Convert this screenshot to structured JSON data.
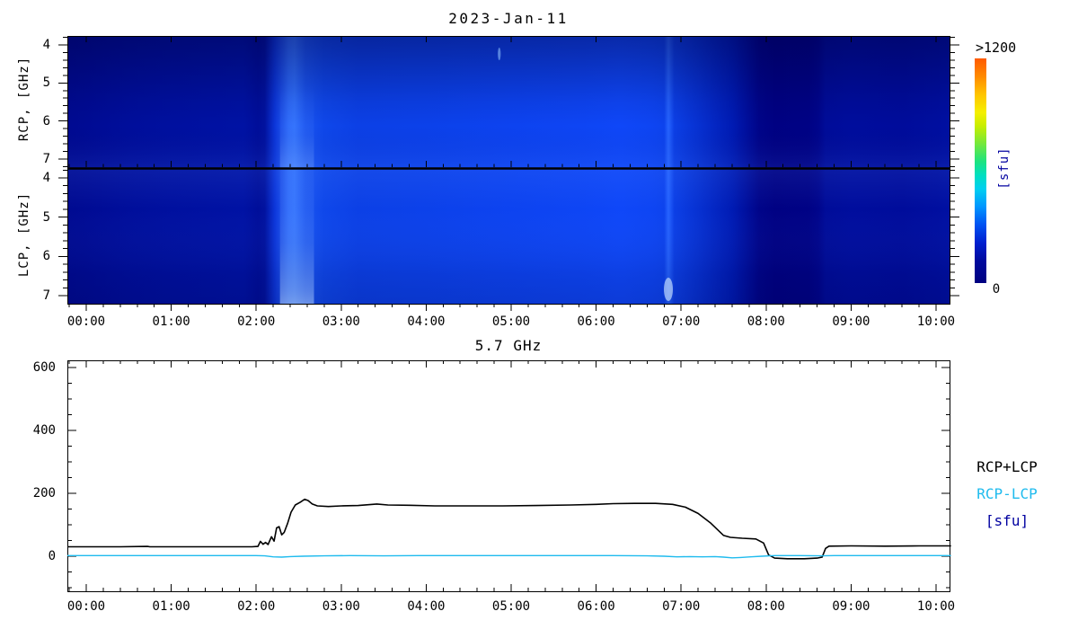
{
  "page_title": "2023-Jan-11",
  "legend": {
    "items": [
      {
        "label": "RCP+LCP",
        "color": "#000000"
      },
      {
        "label": "RCP-LCP",
        "color": "#1fbbee"
      },
      {
        "label": "[sfu]",
        "color": "#0000a0"
      }
    ]
  },
  "chart_data": [
    {
      "type": "heatmap",
      "title": "2023-Jan-11",
      "description": "Dynamic radio spectrum, two stacked polarization panels (RCP top, LCP bottom), frequency 4-7 GHz vs time 00:00-10:10 UT, intensity in sfu (jet colormap, 0 = dark navy, >1200 = orange)",
      "x_tick_labels": [
        "00:00",
        "01:00",
        "02:00",
        "03:00",
        "04:00",
        "05:00",
        "06:00",
        "07:00",
        "08:00",
        "09:00",
        "10:00"
      ],
      "x_range_hours": [
        -0.22,
        10.17
      ],
      "panels": [
        {
          "name": "RCP",
          "ylabel": "RCP, [GHz]",
          "y_ticks": [
            4,
            5,
            6,
            7
          ],
          "y_range_ghz": [
            3.8,
            7.2
          ]
        },
        {
          "name": "LCP",
          "ylabel": "LCP, [GHz]",
          "y_ticks": [
            4,
            5,
            6,
            7
          ],
          "y_range_ghz": [
            3.8,
            7.2
          ]
        }
      ],
      "colorbar": {
        "min": 0,
        "max": 1200,
        "min_label": "0",
        "max_label": ">1200",
        "unit": "[sfu]",
        "gradient_top_to_bottom": [
          {
            "pos": 0.0,
            "color": "#ff5a00"
          },
          {
            "pos": 0.08,
            "color": "#ff8a00"
          },
          {
            "pos": 0.16,
            "color": "#ffc400"
          },
          {
            "pos": 0.24,
            "color": "#f5ef00"
          },
          {
            "pos": 0.3,
            "color": "#c8ee00"
          },
          {
            "pos": 0.38,
            "color": "#74e83c"
          },
          {
            "pos": 0.46,
            "color": "#1ce380"
          },
          {
            "pos": 0.52,
            "color": "#00dfc0"
          },
          {
            "pos": 0.58,
            "color": "#00d0f0"
          },
          {
            "pos": 0.66,
            "color": "#0096ff"
          },
          {
            "pos": 0.74,
            "color": "#0052f2"
          },
          {
            "pos": 0.82,
            "color": "#0020d0"
          },
          {
            "pos": 0.9,
            "color": "#000a9e"
          },
          {
            "pos": 1.0,
            "color": "#000080"
          }
        ]
      },
      "intensity_stops": [
        {
          "t": -0.22,
          "color": "#000a91"
        },
        {
          "t": 0.0,
          "color": "#000b94"
        },
        {
          "t": 0.5,
          "color": "#000e9b"
        },
        {
          "t": 1.0,
          "color": "#00109f"
        },
        {
          "t": 1.5,
          "color": "#0011a2"
        },
        {
          "t": 1.85,
          "color": "#0012a4"
        },
        {
          "t": 2.02,
          "color": "#000e9a"
        },
        {
          "t": 2.1,
          "color": "#01129f"
        },
        {
          "t": 2.22,
          "color": "#0c36da"
        },
        {
          "t": 2.38,
          "color": "#2b68fa"
        },
        {
          "t": 2.45,
          "color": "#2f6ffd"
        },
        {
          "t": 2.58,
          "color": "#1a54f0"
        },
        {
          "t": 2.8,
          "color": "#0f47ea"
        },
        {
          "t": 3.2,
          "color": "#0c40e6"
        },
        {
          "t": 4.0,
          "color": "#0c41ea"
        },
        {
          "t": 5.0,
          "color": "#0d43f0"
        },
        {
          "t": 5.8,
          "color": "#0e45f4"
        },
        {
          "t": 6.3,
          "color": "#0f47f8"
        },
        {
          "t": 6.65,
          "color": "#0e45f3"
        },
        {
          "t": 6.8,
          "color": "#0d43ee"
        },
        {
          "t": 6.85,
          "color": "#2663ff"
        },
        {
          "t": 6.92,
          "color": "#0c3fe6"
        },
        {
          "t": 7.2,
          "color": "#0731d2"
        },
        {
          "t": 7.6,
          "color": "#001bb4"
        },
        {
          "t": 7.92,
          "color": "#000489"
        },
        {
          "t": 8.1,
          "color": "#000183"
        },
        {
          "t": 8.5,
          "color": "#000285"
        },
        {
          "t": 8.62,
          "color": "#00058c"
        },
        {
          "t": 8.7,
          "color": "#000c99"
        },
        {
          "t": 9.0,
          "color": "#000d9d"
        },
        {
          "t": 9.6,
          "color": "#000c9b"
        },
        {
          "t": 10.0,
          "color": "#000e9f"
        },
        {
          "t": 10.17,
          "color": "#0010a2"
        }
      ],
      "features": [
        {
          "type": "bright-band",
          "t_start": 2.28,
          "t_end": 2.68,
          "label": "burst-rise brightening ~02:20-02:45, strongest at high frequency"
        },
        {
          "type": "bright-point",
          "t": 6.85,
          "where": "lcp-bottom",
          "label": "narrow bright feature ~06:50 near 7 GHz (LCP)"
        },
        {
          "type": "bright-point",
          "t": 4.86,
          "where": "rcp-top",
          "label": "small bright speck ~04:52 near 4 GHz (RCP)"
        },
        {
          "type": "dark-band",
          "t_start": 7.95,
          "t_end": 8.62,
          "label": "dark attenuated interval ~08:00-08:40"
        }
      ]
    },
    {
      "type": "line",
      "title": "5.7 GHz",
      "unit": "sfu",
      "x_tick_labels": [
        "00:00",
        "01:00",
        "02:00",
        "03:00",
        "04:00",
        "05:00",
        "06:00",
        "07:00",
        "08:00",
        "09:00",
        "10:00"
      ],
      "x_range_hours": [
        -0.22,
        10.17
      ],
      "yticks": [
        0,
        200,
        400,
        600
      ],
      "ylim": [
        -110,
        623
      ],
      "grid": false,
      "legend_position": "right-outside",
      "series": [
        {
          "name": "RCP+LCP",
          "color": "#000000",
          "width": 1.6,
          "points": [
            [
              -0.22,
              30
            ],
            [
              0.0,
              30
            ],
            [
              0.4,
              30
            ],
            [
              0.72,
              31
            ],
            [
              0.75,
              30
            ],
            [
              1.2,
              30
            ],
            [
              1.6,
              30
            ],
            [
              1.95,
              30
            ],
            [
              2.02,
              31
            ],
            [
              2.05,
              47
            ],
            [
              2.08,
              38
            ],
            [
              2.11,
              44
            ],
            [
              2.14,
              37
            ],
            [
              2.18,
              62
            ],
            [
              2.21,
              48
            ],
            [
              2.24,
              90
            ],
            [
              2.27,
              94
            ],
            [
              2.3,
              68
            ],
            [
              2.33,
              76
            ],
            [
              2.37,
              105
            ],
            [
              2.41,
              140
            ],
            [
              2.46,
              163
            ],
            [
              2.52,
              172
            ],
            [
              2.57,
              181
            ],
            [
              2.61,
              177
            ],
            [
              2.66,
              166
            ],
            [
              2.72,
              160
            ],
            [
              2.85,
              158
            ],
            [
              3.0,
              160
            ],
            [
              3.2,
              161
            ],
            [
              3.42,
              166
            ],
            [
              3.55,
              163
            ],
            [
              3.8,
              162
            ],
            [
              4.1,
              160
            ],
            [
              4.5,
              160
            ],
            [
              4.9,
              160
            ],
            [
              5.3,
              161
            ],
            [
              5.7,
              163
            ],
            [
              6.0,
              165
            ],
            [
              6.2,
              167
            ],
            [
              6.45,
              168
            ],
            [
              6.7,
              168
            ],
            [
              6.9,
              165
            ],
            [
              7.05,
              156
            ],
            [
              7.2,
              136
            ],
            [
              7.35,
              105
            ],
            [
              7.5,
              66
            ],
            [
              7.58,
              60
            ],
            [
              7.72,
              57
            ],
            [
              7.88,
              55
            ],
            [
              7.97,
              42
            ],
            [
              8.03,
              4
            ],
            [
              8.1,
              -6
            ],
            [
              8.25,
              -8
            ],
            [
              8.45,
              -8
            ],
            [
              8.6,
              -6
            ],
            [
              8.66,
              -3
            ],
            [
              8.7,
              25
            ],
            [
              8.74,
              32
            ],
            [
              9.0,
              33
            ],
            [
              9.4,
              32
            ],
            [
              9.8,
              33
            ],
            [
              10.17,
              33
            ]
          ]
        },
        {
          "name": "RCP-LCP",
          "color": "#1fbbee",
          "width": 1.4,
          "points": [
            [
              -0.22,
              2
            ],
            [
              0.5,
              2
            ],
            [
              1.0,
              2
            ],
            [
              1.5,
              2
            ],
            [
              2.0,
              2
            ],
            [
              2.1,
              1
            ],
            [
              2.2,
              -2
            ],
            [
              2.3,
              -3
            ],
            [
              2.4,
              -1
            ],
            [
              2.55,
              0
            ],
            [
              2.8,
              1
            ],
            [
              3.1,
              2
            ],
            [
              3.5,
              1
            ],
            [
              3.9,
              2
            ],
            [
              4.3,
              2
            ],
            [
              4.8,
              2
            ],
            [
              5.3,
              2
            ],
            [
              5.8,
              2
            ],
            [
              6.2,
              2
            ],
            [
              6.6,
              1
            ],
            [
              6.8,
              0
            ],
            [
              6.95,
              -2
            ],
            [
              7.1,
              -1
            ],
            [
              7.25,
              -2
            ],
            [
              7.4,
              -1
            ],
            [
              7.5,
              -3
            ],
            [
              7.6,
              -5
            ],
            [
              7.7,
              -4
            ],
            [
              7.82,
              -2
            ],
            [
              7.95,
              0
            ],
            [
              8.1,
              2
            ],
            [
              8.4,
              2
            ],
            [
              8.65,
              1
            ],
            [
              8.8,
              2
            ],
            [
              9.2,
              2
            ],
            [
              9.7,
              2
            ],
            [
              10.17,
              2
            ]
          ]
        }
      ]
    }
  ]
}
